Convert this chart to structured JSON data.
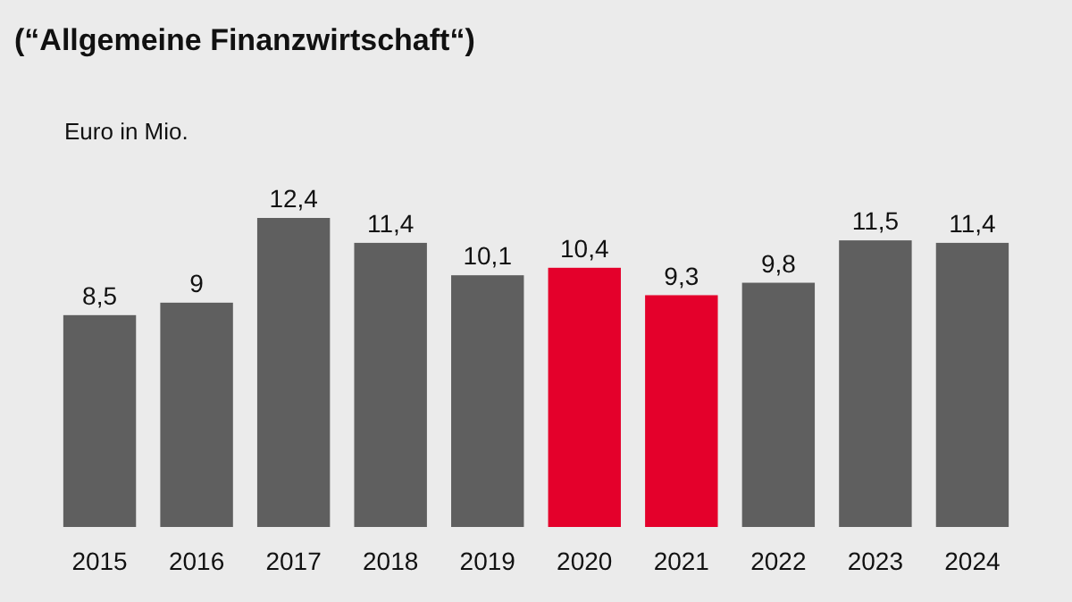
{
  "chart_data": {
    "type": "bar",
    "title": "(“Allgemeine Finanzwirtschaft“)",
    "ylabel": "Euro in Mio.",
    "categories": [
      "2015",
      "2016",
      "2017",
      "2018",
      "2019",
      "2020",
      "2021",
      "2022",
      "2023",
      "2024"
    ],
    "values": [
      8.5,
      9,
      12.4,
      11.4,
      10.1,
      10.4,
      9.3,
      9.8,
      11.5,
      11.4
    ],
    "value_labels": [
      "8,5",
      "9",
      "12,4",
      "11,4",
      "10,1",
      "10,4",
      "9,3",
      "9,8",
      "11,5",
      "11,4"
    ],
    "colors": [
      "#5f5f5f",
      "#5f5f5f",
      "#5f5f5f",
      "#5f5f5f",
      "#5f5f5f",
      "#e4002b",
      "#e4002b",
      "#5f5f5f",
      "#5f5f5f",
      "#5f5f5f"
    ]
  }
}
